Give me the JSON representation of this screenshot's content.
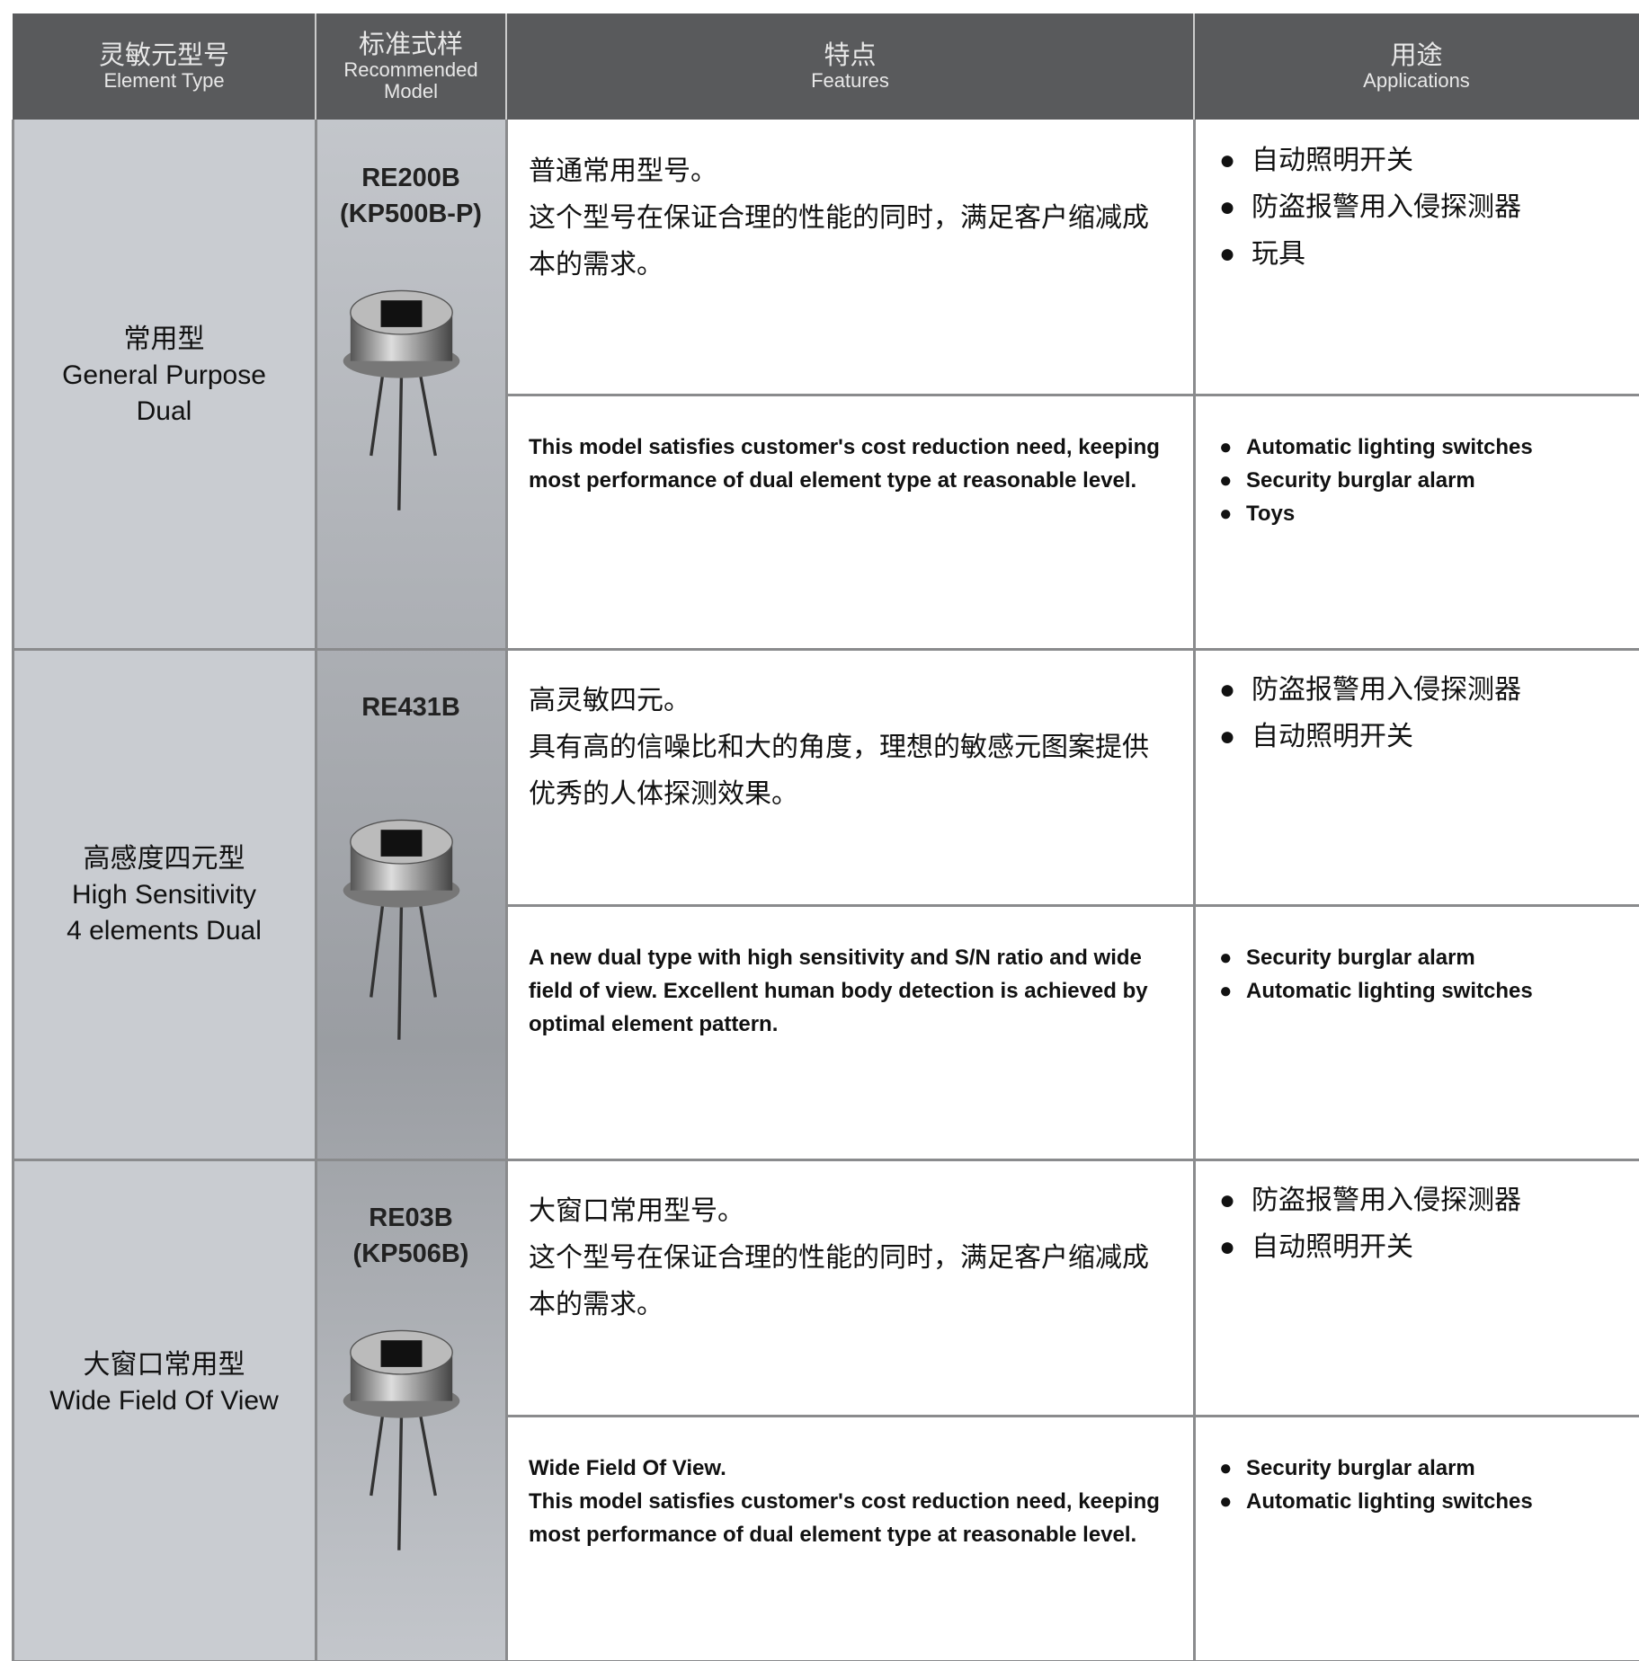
{
  "header": [
    {
      "zh": "灵敏元型号",
      "en": "Element Type"
    },
    {
      "zh": "标准式样",
      "en": "Recommended Model"
    },
    {
      "zh": "特点",
      "en": "Features"
    },
    {
      "zh": "用途",
      "en": "Applications"
    }
  ],
  "rows": [
    {
      "type_zh": "常用型",
      "type_en": [
        "General Purpose",
        "Dual"
      ],
      "model": [
        "RE200B",
        "(KP500B-P)"
      ],
      "features_zh": [
        "普通常用型号。",
        "这个型号在保证合理的性能的同时，满足客户缩减成本的需求。"
      ],
      "features_en": [
        "This model satisfies customer's cost reduction need, keeping most performance of dual element type at reasonable level."
      ],
      "apps_zh": [
        "自动照明开关",
        "防盗报警用入侵探测器",
        "玩具"
      ],
      "apps_en": [
        "Automatic lighting switches",
        "Security burglar alarm",
        "Toys"
      ]
    },
    {
      "type_zh": "高感度四元型",
      "type_en": [
        "High Sensitivity",
        "4 elements Dual"
      ],
      "model": [
        "RE431B"
      ],
      "features_zh": [
        "高灵敏四元。",
        "具有高的信噪比和大的角度，理想的敏感元图案提供优秀的人体探测效果。"
      ],
      "features_en": [
        "A new dual type with high sensitivity and S/N ratio and wide field of view. Excellent human body detection is achieved by optimal element pattern."
      ],
      "apps_zh": [
        "防盗报警用入侵探测器",
        "自动照明开关"
      ],
      "apps_en": [
        "Security burglar alarm",
        "Automatic lighting switches"
      ]
    },
    {
      "type_zh": "大窗口常用型",
      "type_en": [
        "Wide Field Of View"
      ],
      "model": [
        "RE03B",
        "(KP506B)"
      ],
      "features_zh": [
        "大窗口常用型号。",
        "这个型号在保证合理的性能的同时，满足客户缩减成本的需求。"
      ],
      "features_en": [
        "Wide Field Of View.",
        "This model satisfies customer's cost reduction need, keeping most performance of dual element type at reasonable level."
      ],
      "apps_zh": [
        "防盗报警用入侵探测器",
        "自动照明开关"
      ],
      "apps_en": [
        "Security burglar alarm",
        "Automatic lighting switches"
      ]
    }
  ]
}
